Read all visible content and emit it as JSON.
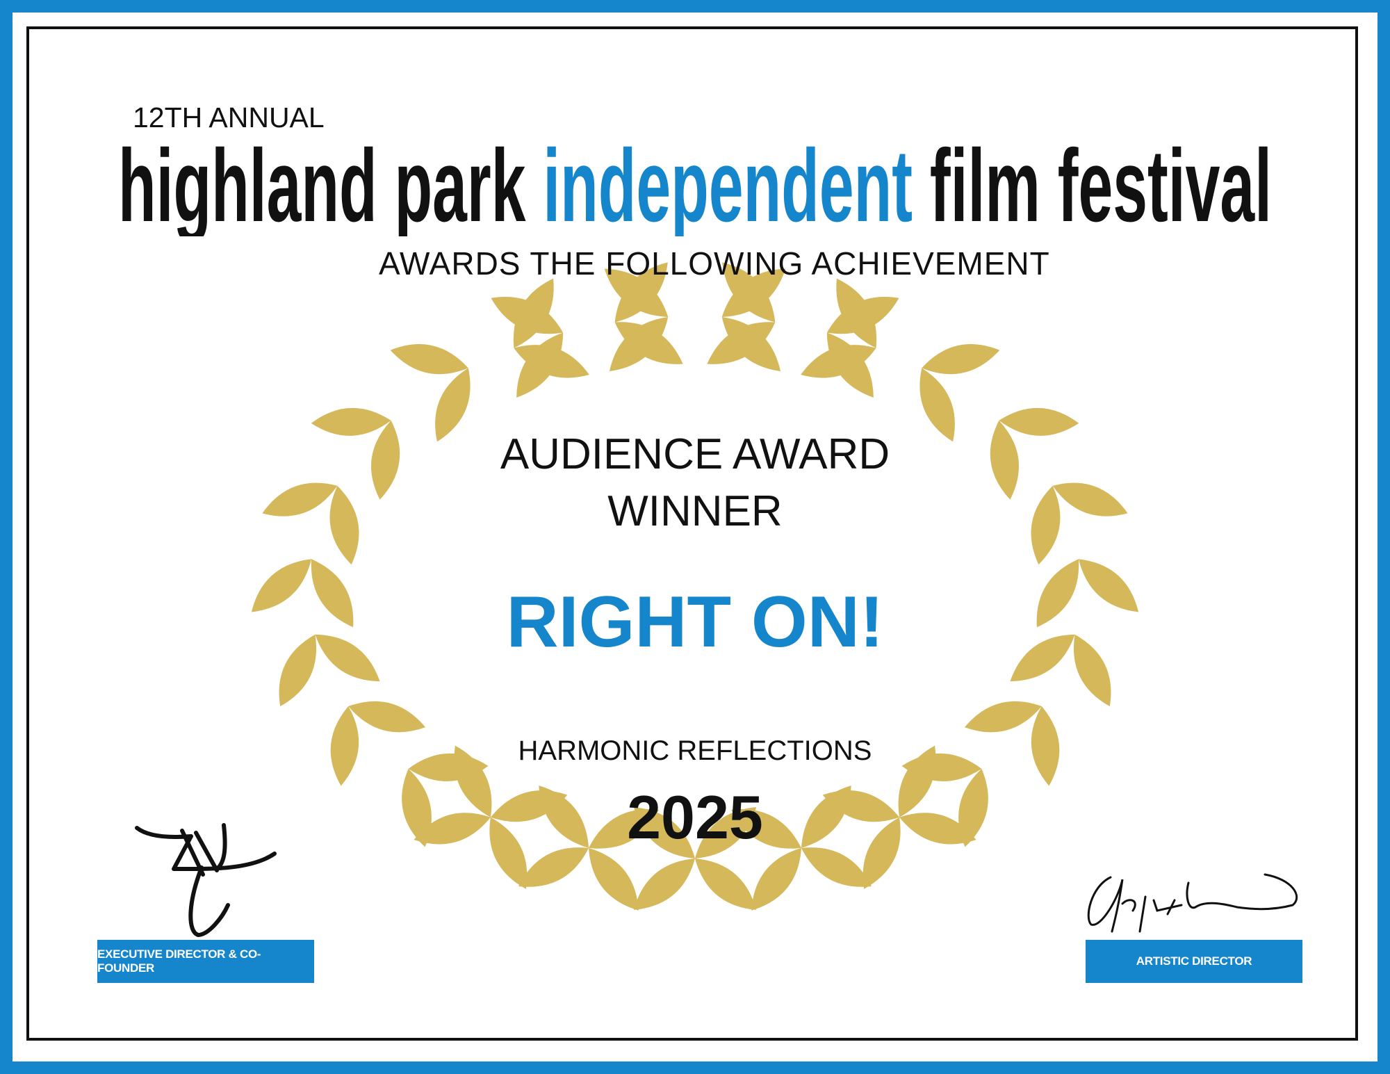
{
  "header": {
    "edition": "12TH ANNUAL",
    "festival_name_part1": "highland park",
    "festival_name_highlight": "independent",
    "festival_name_part2": "film festival",
    "subtitle": "AWARDS THE FOLLOWING ACHIEVEMENT"
  },
  "award": {
    "line1": "AUDIENCE AWARD",
    "line2": "WINNER",
    "film_title": "RIGHT ON!",
    "project": "HARMONIC REFLECTIONS",
    "year": "2025"
  },
  "signatures": {
    "left_role": "EXECUTIVE DIRECTOR & CO-FOUNDER",
    "right_role": "ARTISTIC DIRECTOR"
  },
  "colors": {
    "brand_blue": "#1585CC",
    "laurel_gold": "#D4B85A",
    "text": "#111111"
  },
  "icons": [
    "laurel-wreath-left",
    "laurel-wreath-right",
    "signature-left",
    "signature-right"
  ]
}
